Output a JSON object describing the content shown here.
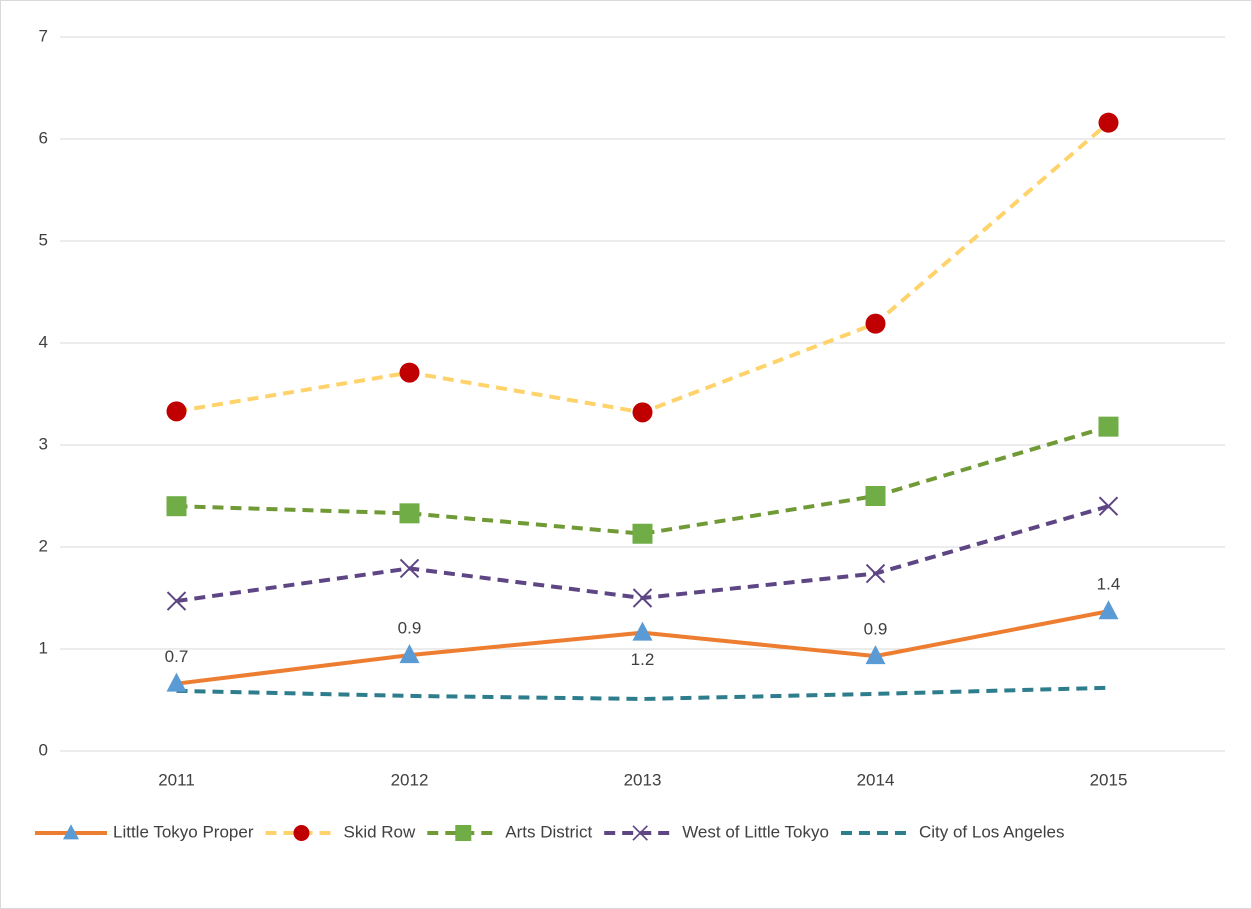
{
  "chart_data": {
    "type": "line",
    "categories": [
      "2011",
      "2012",
      "2013",
      "2014",
      "2015"
    ],
    "ylim": [
      0,
      7
    ],
    "yticks": [
      0,
      1,
      2,
      3,
      4,
      5,
      6,
      7
    ],
    "grid": true,
    "legend": "bottom",
    "series": [
      {
        "name": "Little Tokyo Proper",
        "color": "#ed7d31",
        "dash": false,
        "marker": "triangle",
        "marker_color": "#5b9bd5",
        "values": [
          0.66,
          0.94,
          1.16,
          0.93,
          1.37
        ],
        "value_labels": [
          "0.7",
          "0.9",
          "1.2",
          "0.9",
          "1.4"
        ]
      },
      {
        "name": "Skid Row",
        "color": "#ffd36b",
        "dash": true,
        "marker": "circle",
        "marker_color": "#c00000",
        "values": [
          3.33,
          3.71,
          3.32,
          4.19,
          6.16
        ]
      },
      {
        "name": "Arts District",
        "color": "#6f9a35",
        "dash": true,
        "marker": "square",
        "marker_color": "#70ad47",
        "values": [
          2.4,
          2.33,
          2.13,
          2.5,
          3.18
        ]
      },
      {
        "name": "West of Little Tokyo",
        "color": "#5e4584",
        "dash": true,
        "marker": "x",
        "marker_color": "#5e4584",
        "values": [
          1.47,
          1.79,
          1.5,
          1.74,
          2.4
        ]
      },
      {
        "name": "City of Los Angeles",
        "color": "#2e7d8c",
        "dash": true,
        "marker": "none",
        "marker_color": "#2e7d8c",
        "values": [
          0.59,
          0.54,
          0.51,
          0.56,
          0.62
        ]
      }
    ]
  }
}
